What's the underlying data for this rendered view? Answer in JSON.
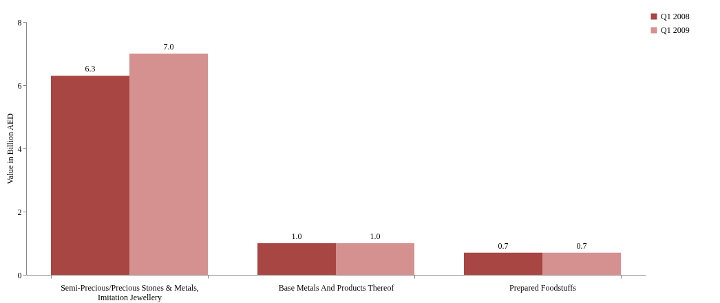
{
  "chart_data": {
    "type": "bar",
    "ylabel": "Value in Billion AED",
    "categories": [
      "Semi-Precious/Precious Stones & Metals, Imitation Jewellery",
      "Base Metals And Products Thereof",
      "Prepared Foodstuffs"
    ],
    "series": [
      {
        "name": "Q1 2008",
        "color": "#a84644",
        "values": [
          6.3,
          1.0,
          0.7
        ],
        "value_labels": [
          "6.3",
          "1.0",
          "0.7"
        ]
      },
      {
        "name": "Q1 2009",
        "color": "#d49190",
        "values": [
          7.0,
          1.0,
          0.7
        ],
        "value_labels": [
          "7.0",
          "1.0",
          "0.7"
        ]
      }
    ],
    "ylim": [
      0,
      8
    ],
    "yticks": [
      0,
      2,
      4,
      6,
      8
    ],
    "grid": false,
    "legend": "top right"
  }
}
